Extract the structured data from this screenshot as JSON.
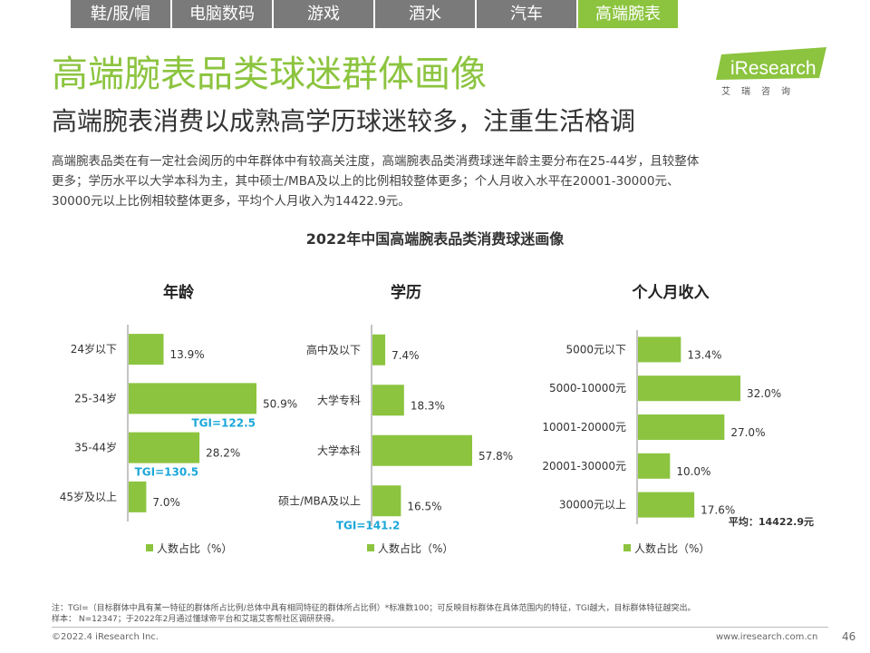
{
  "tabs": [
    {
      "label": "鞋/服/帽",
      "active": false
    },
    {
      "label": "电脑数码",
      "active": false
    },
    {
      "label": "游戏",
      "active": false
    },
    {
      "label": "酒水",
      "active": false
    },
    {
      "label": "汽车",
      "active": false
    },
    {
      "label": "高端腕表",
      "active": true
    }
  ],
  "title": "高端腕表品类球迷群体画像",
  "subtitle": "高端腕表消费以成熟高学历球迷较多，注重生活格调",
  "logo": {
    "text": "iResearch",
    "sub": "艾瑞咨询"
  },
  "description": [
    "高端腕表品类在有一定社会阅历的中年群体中有较高关注度，高端腕表品类消费球迷年龄主要分布在25-44岁，且较整体",
    "更多；学历水平以大学本科为主，其中硕士/MBA及以上的比例相较整体更多；个人月收入水平在20001-30000元、",
    "30000元以上比例相较整体更多，平均个人月收入为14422.9元。"
  ],
  "chart_title": "2022年中国高端腕表品类消费球迷画像",
  "chart_data": [
    {
      "type": "bar",
      "orientation": "horizontal",
      "title": "年龄",
      "categories": [
        "24岁以下",
        "25-34岁",
        "35-44岁",
        "45岁及以上"
      ],
      "series": [
        {
          "name": "人数占比（%）",
          "values": [
            13.9,
            50.9,
            28.2,
            7.0
          ],
          "labels": [
            "13.9%",
            "50.9%",
            "28.2%",
            "7.0%"
          ]
        }
      ],
      "annotations": [
        {
          "category": "25-34岁",
          "text": "TGI=122.5"
        },
        {
          "category": "35-44岁",
          "text": "TGI=130.5"
        }
      ],
      "xlim": [
        0,
        60
      ]
    },
    {
      "type": "bar",
      "orientation": "horizontal",
      "title": "学历",
      "categories": [
        "高中及以下",
        "大学专科",
        "大学本科",
        "硕士/MBA及以上"
      ],
      "series": [
        {
          "name": "人数占比（%）",
          "values": [
            7.4,
            18.3,
            57.8,
            16.5
          ],
          "labels": [
            "7.4%",
            "18.3%",
            "57.8%",
            "16.5%"
          ]
        }
      ],
      "annotations": [
        {
          "category": "硕士/MBA及以上",
          "text": "TGI=141.2"
        }
      ],
      "xlim": [
        0,
        70
      ]
    },
    {
      "type": "bar",
      "orientation": "horizontal",
      "title": "个人月收入",
      "categories": [
        "5000元以下",
        "5000-10000元",
        "10001-20000元",
        "20001-30000元",
        "30000元以上"
      ],
      "series": [
        {
          "name": "人数占比（%）",
          "values": [
            13.4,
            32.0,
            27.0,
            10.0,
            17.6
          ],
          "labels": [
            "13.4%",
            "32.0%",
            "27.0%",
            "10.0%",
            "17.6%"
          ]
        }
      ],
      "annotations": [],
      "note": "平均：14422.9元",
      "xlim": [
        0,
        40
      ]
    }
  ],
  "colors": {
    "bar": "#8cc43f",
    "tgi": "#1aa7d9",
    "accent": "#8cc43f",
    "tab": "#7a7a7a"
  },
  "footnote": [
    "注：TGI=（目标群体中具有某一特征的群体所占比例/总体中具有相同特征的群体所占比例）*标准数100；可反映目标群体在具体范围内的特征，TGI越大，目标群体特征越突出。",
    "样本： N=12347；于2022年2月通过懂球帝平台和艾瑞艾客帮社区调研获得。"
  ],
  "copyright": "©2022.4 iResearch Inc.",
  "url": "www.iresearch.com.cn",
  "page_number": "46"
}
